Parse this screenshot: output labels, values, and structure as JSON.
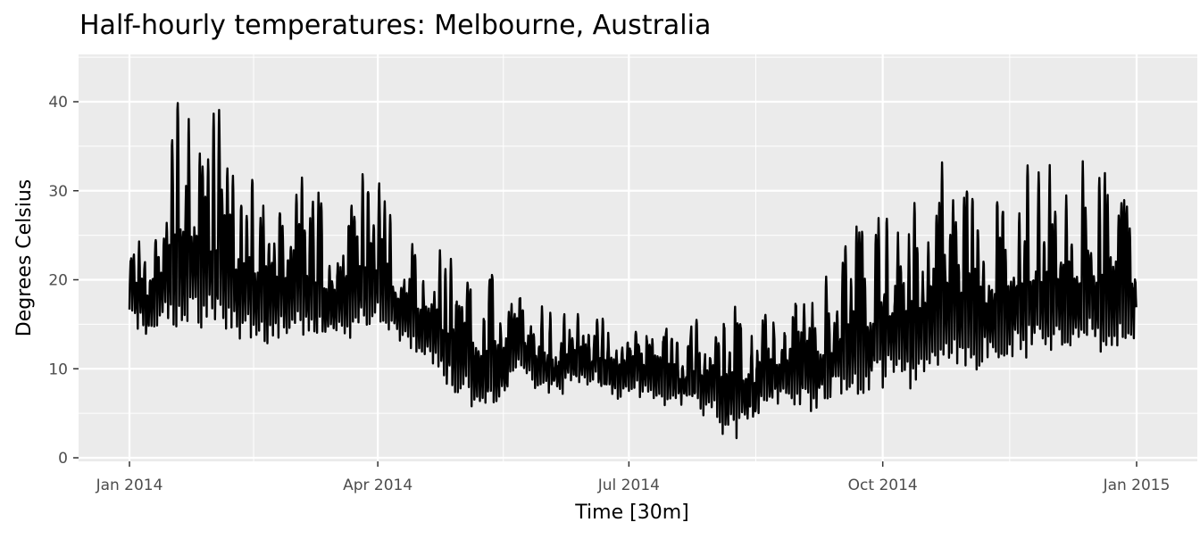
{
  "chart_data": {
    "type": "line",
    "title": "Half-hourly temperatures: Melbourne, Australia",
    "xlabel": "Time [30m]",
    "ylabel": "Degrees Celsius",
    "xlim": [
      "2014-01-01",
      "2015-01-01"
    ],
    "ylim": [
      0,
      45
    ],
    "x_ticks": [
      "2014-01-01",
      "2014-04-01",
      "2014-07-01",
      "2014-10-01",
      "2015-01-01"
    ],
    "x_tick_labels": [
      "Jan 2014",
      "Apr 2014",
      "Jul 2014",
      "Oct 2014",
      "Jan 2015"
    ],
    "y_ticks": [
      0,
      10,
      20,
      30,
      40
    ],
    "grid": true,
    "colors": {
      "panel": "#ebebeb",
      "grid": "#ffffff",
      "line": "#000000",
      "tick_text": "#4d4d4d"
    },
    "series_daily": {
      "x": [
        "2014-01-01",
        "2014-01-08",
        "2014-01-15",
        "2014-01-16",
        "2014-01-18",
        "2014-01-22",
        "2014-01-29",
        "2014-02-05",
        "2014-02-08",
        "2014-02-12",
        "2014-02-19",
        "2014-02-26",
        "2014-03-05",
        "2014-03-12",
        "2014-03-19",
        "2014-03-26",
        "2014-03-30",
        "2014-04-02",
        "2014-04-09",
        "2014-04-16",
        "2014-04-23",
        "2014-04-28",
        "2014-05-01",
        "2014-05-08",
        "2014-05-15",
        "2014-05-22",
        "2014-05-29",
        "2014-06-05",
        "2014-06-12",
        "2014-06-19",
        "2014-06-26",
        "2014-07-03",
        "2014-07-10",
        "2014-07-17",
        "2014-07-24",
        "2014-07-31",
        "2014-08-01",
        "2014-08-07",
        "2014-08-14",
        "2014-08-21",
        "2014-08-28",
        "2014-09-04",
        "2014-09-11",
        "2014-09-18",
        "2014-09-25",
        "2014-10-02",
        "2014-10-09",
        "2014-10-16",
        "2014-10-23",
        "2014-10-30",
        "2014-11-06",
        "2014-11-13",
        "2014-11-20",
        "2014-11-27",
        "2014-12-04",
        "2014-12-11",
        "2014-12-18",
        "2014-12-25",
        "2014-12-31"
      ],
      "min": [
        16,
        13,
        15,
        16,
        14,
        15,
        14,
        15,
        14,
        13,
        13,
        13,
        14,
        13,
        13,
        14,
        15,
        15,
        13,
        12,
        10,
        8,
        7,
        6,
        5,
        10,
        8,
        7,
        9,
        8,
        7,
        7,
        7,
        6,
        6,
        5,
        4,
        2,
        4,
        6,
        6,
        5,
        6,
        7,
        7,
        8,
        8,
        9,
        10,
        10,
        10,
        11,
        11,
        12,
        12,
        12,
        12,
        12,
        13
      ],
      "max": [
        26,
        26,
        34,
        42,
        43,
        41,
        39,
        40,
        33,
        33,
        32,
        33,
        31,
        30,
        28,
        33,
        31,
        31,
        25,
        24,
        24,
        23,
        23,
        22,
        21,
        18,
        17,
        17,
        16,
        16,
        16,
        17,
        15,
        15,
        15,
        18,
        19,
        18,
        16,
        17,
        18,
        21,
        22,
        26,
        28,
        28,
        29,
        32,
        34,
        33,
        31,
        32,
        33,
        34,
        33,
        33,
        33,
        31,
        26
      ]
    }
  }
}
